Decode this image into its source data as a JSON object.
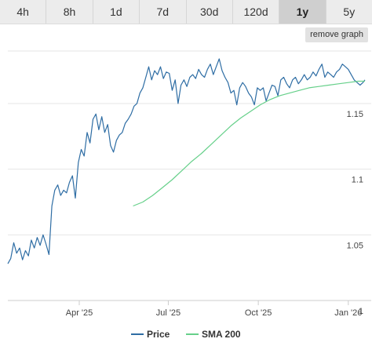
{
  "tabs": [
    {
      "label": "4h",
      "active": false
    },
    {
      "label": "8h",
      "active": false
    },
    {
      "label": "1d",
      "active": false
    },
    {
      "label": "7d",
      "active": false
    },
    {
      "label": "30d",
      "active": false
    },
    {
      "label": "120d",
      "active": false
    },
    {
      "label": "1y",
      "active": true
    },
    {
      "label": "5y",
      "active": false
    }
  ],
  "remove_graph_label": "remove graph",
  "colors": {
    "price": "#2e6da4",
    "sma": "#66d08a",
    "grid": "#e6e6e6"
  },
  "chart_data": {
    "type": "line",
    "ylim": [
      1.0,
      1.19
    ],
    "y_ticks": [
      "1",
      "1.05",
      "1.1",
      "1.15"
    ],
    "x_ticks": [
      "Apr '25",
      "Jul '25",
      "Oct '25",
      "Jan '26"
    ],
    "x_tick_dates": [
      "2025-04-01",
      "2025-07-01",
      "2025-10-01",
      "2026-01-01"
    ],
    "grid": true,
    "legend_position": "bottom-center",
    "series": [
      {
        "name": "Price",
        "x": [
          "2025-01-18",
          "2025-01-21",
          "2025-01-24",
          "2025-01-27",
          "2025-01-30",
          "2025-02-02",
          "2025-02-05",
          "2025-02-08",
          "2025-02-11",
          "2025-02-14",
          "2025-02-17",
          "2025-02-20",
          "2025-02-23",
          "2025-02-26",
          "2025-03-01",
          "2025-03-04",
          "2025-03-07",
          "2025-03-10",
          "2025-03-13",
          "2025-03-16",
          "2025-03-19",
          "2025-03-22",
          "2025-03-25",
          "2025-03-28",
          "2025-03-31",
          "2025-04-03",
          "2025-04-06",
          "2025-04-09",
          "2025-04-12",
          "2025-04-15",
          "2025-04-18",
          "2025-04-21",
          "2025-04-24",
          "2025-04-27",
          "2025-04-30",
          "2025-05-03",
          "2025-05-06",
          "2025-05-09",
          "2025-05-12",
          "2025-05-15",
          "2025-05-18",
          "2025-05-21",
          "2025-05-24",
          "2025-05-27",
          "2025-05-30",
          "2025-06-02",
          "2025-06-05",
          "2025-06-08",
          "2025-06-11",
          "2025-06-14",
          "2025-06-17",
          "2025-06-20",
          "2025-06-23",
          "2025-06-26",
          "2025-06-29",
          "2025-07-02",
          "2025-07-05",
          "2025-07-08",
          "2025-07-11",
          "2025-07-14",
          "2025-07-17",
          "2025-07-20",
          "2025-07-23",
          "2025-07-26",
          "2025-07-29",
          "2025-08-01",
          "2025-08-04",
          "2025-08-07",
          "2025-08-10",
          "2025-08-13",
          "2025-08-16",
          "2025-08-19",
          "2025-08-22",
          "2025-08-25",
          "2025-08-28",
          "2025-08-31",
          "2025-09-03",
          "2025-09-06",
          "2025-09-09",
          "2025-09-12",
          "2025-09-15",
          "2025-09-18",
          "2025-09-21",
          "2025-09-24",
          "2025-09-27",
          "2025-09-30",
          "2025-10-03",
          "2025-10-06",
          "2025-10-09",
          "2025-10-12",
          "2025-10-15",
          "2025-10-18",
          "2025-10-21",
          "2025-10-24",
          "2025-10-27",
          "2025-10-30",
          "2025-11-02",
          "2025-11-05",
          "2025-11-08",
          "2025-11-11",
          "2025-11-14",
          "2025-11-17",
          "2025-11-20",
          "2025-11-23",
          "2025-11-26",
          "2025-11-29",
          "2025-12-02",
          "2025-12-05",
          "2025-12-08",
          "2025-12-11",
          "2025-12-14",
          "2025-12-17",
          "2025-12-20",
          "2025-12-23",
          "2025-12-26",
          "2025-12-29",
          "2026-01-01",
          "2026-01-04",
          "2026-01-07",
          "2026-01-10",
          "2026-01-13",
          "2026-01-16",
          "2026-01-18"
        ],
        "values": [
          1.028,
          1.032,
          1.044,
          1.036,
          1.04,
          1.031,
          1.038,
          1.034,
          1.046,
          1.04,
          1.048,
          1.042,
          1.05,
          1.043,
          1.035,
          1.072,
          1.084,
          1.088,
          1.08,
          1.084,
          1.082,
          1.09,
          1.095,
          1.078,
          1.105,
          1.115,
          1.11,
          1.128,
          1.12,
          1.138,
          1.142,
          1.13,
          1.14,
          1.128,
          1.134,
          1.118,
          1.113,
          1.122,
          1.126,
          1.128,
          1.135,
          1.138,
          1.142,
          1.148,
          1.15,
          1.158,
          1.162,
          1.17,
          1.178,
          1.168,
          1.175,
          1.172,
          1.178,
          1.169,
          1.174,
          1.173,
          1.16,
          1.168,
          1.15,
          1.164,
          1.168,
          1.163,
          1.17,
          1.172,
          1.169,
          1.176,
          1.172,
          1.17,
          1.176,
          1.18,
          1.172,
          1.178,
          1.184,
          1.175,
          1.17,
          1.166,
          1.158,
          1.16,
          1.149,
          1.162,
          1.166,
          1.163,
          1.158,
          1.155,
          1.149,
          1.162,
          1.16,
          1.162,
          1.152,
          1.158,
          1.164,
          1.163,
          1.156,
          1.168,
          1.17,
          1.165,
          1.162,
          1.168,
          1.17,
          1.165,
          1.168,
          1.172,
          1.168,
          1.17,
          1.174,
          1.171,
          1.176,
          1.18,
          1.17,
          1.174,
          1.172,
          1.17,
          1.174,
          1.176,
          1.18,
          1.178,
          1.176,
          1.172,
          1.168,
          1.166,
          1.164,
          1.166,
          1.168
        ]
      },
      {
        "name": "SMA 200",
        "x": [
          "2025-05-26",
          "2025-06-05",
          "2025-06-15",
          "2025-06-25",
          "2025-07-05",
          "2025-07-15",
          "2025-07-25",
          "2025-08-04",
          "2025-08-14",
          "2025-08-24",
          "2025-09-03",
          "2025-09-13",
          "2025-09-23",
          "2025-10-03",
          "2025-10-13",
          "2025-10-23",
          "2025-11-02",
          "2025-11-12",
          "2025-11-22",
          "2025-12-02",
          "2025-12-12",
          "2025-12-22",
          "2026-01-01",
          "2026-01-11",
          "2026-01-18"
        ],
        "values": [
          1.072,
          1.075,
          1.08,
          1.086,
          1.092,
          1.099,
          1.106,
          1.112,
          1.119,
          1.126,
          1.133,
          1.139,
          1.144,
          1.149,
          1.153,
          1.156,
          1.158,
          1.16,
          1.162,
          1.163,
          1.164,
          1.165,
          1.166,
          1.167,
          1.167
        ]
      }
    ]
  }
}
